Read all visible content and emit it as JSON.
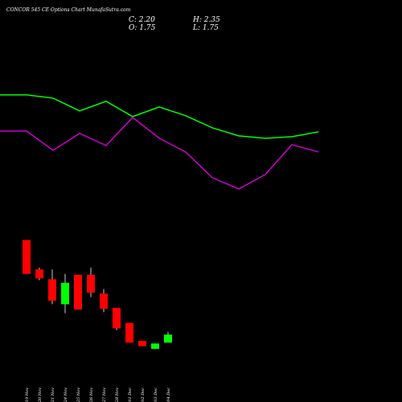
{
  "chart_data": [
    {
      "type": "candlestick",
      "title": "CONCOR 545 CE Options  Chart MunafaSutra.com",
      "ohlc_labels": [
        "C: 2.20",
        "H: 2.35",
        "O: 1.75",
        "L: 1.75"
      ],
      "categories": [
        "19 Nov",
        "20 Nov",
        "21 Nov",
        "24 Nov",
        "25 Nov",
        "26 Nov",
        "27 Nov",
        "28 Nov",
        "01 Dec",
        "02 Dec",
        "03 Dec",
        "04 Dec"
      ],
      "open": [
        7.5,
        5.85,
        5.3,
        3.9,
        5.55,
        5.55,
        4.5,
        3.7,
        2.85,
        1.85,
        1.4,
        1.75
      ],
      "high": [
        7.5,
        5.95,
        5.85,
        5.6,
        5.55,
        5.95,
        4.75,
        3.7,
        2.85,
        1.85,
        1.7,
        2.35
      ],
      "low": [
        5.6,
        5.25,
        3.9,
        3.4,
        3.6,
        4.3,
        3.45,
        2.45,
        1.75,
        1.55,
        1.4,
        1.75
      ],
      "close": [
        5.6,
        5.35,
        4.1,
        5.1,
        3.6,
        4.55,
        3.65,
        2.55,
        1.75,
        1.55,
        1.7,
        2.2
      ],
      "up_color": "#00ff00",
      "down_color": "#ff0000",
      "ylim": [
        0,
        12
      ]
    },
    {
      "type": "line",
      "series": [
        {
          "color": "#00ff00",
          "values": [
            88,
            88,
            85.3,
            74.7,
            82.7,
            70,
            78,
            70.7,
            60.7,
            54,
            52,
            53.3,
            57.3
          ]
        },
        {
          "color": "#cc00cc",
          "values": [
            58,
            58,
            42,
            56,
            46,
            69.3,
            52,
            40.7,
            19.3,
            10,
            22,
            46.7,
            40.7
          ]
        }
      ],
      "ylim": [
        0,
        100
      ]
    }
  ]
}
